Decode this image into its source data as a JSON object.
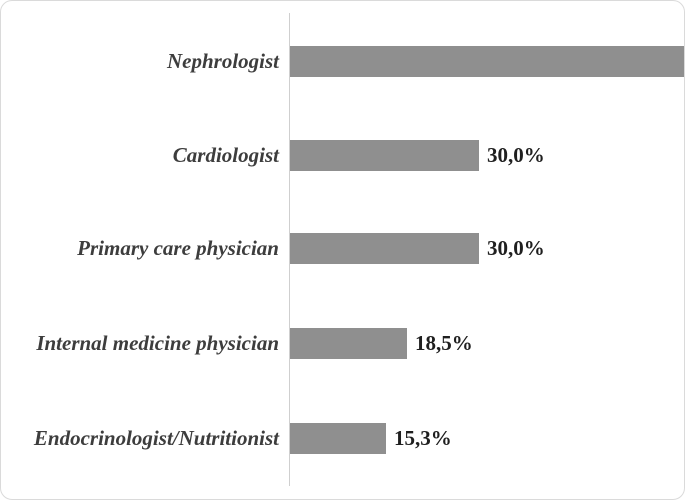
{
  "chart_data": {
    "type": "bar",
    "orientation": "horizontal",
    "title": "",
    "xlabel": "",
    "ylabel": "",
    "categories": [
      "Nephrologist",
      "Cardiologist",
      "Primary care physician",
      "Internal medicine physician",
      "Endocrinologist/Nutritionist"
    ],
    "values": [
      null,
      30.0,
      30.0,
      18.5,
      15.3
    ],
    "value_labels": [
      "",
      "30,0%",
      "30,0%",
      "18,5%",
      "15,3%"
    ],
    "first_bar_cut_off_at_right_edge": true,
    "decimal_separator": ",",
    "grid": false,
    "legend": "none",
    "bar_color": "#8f8f8f",
    "axis_line_color": "#cfcfcf",
    "category_label_color": "#3d3d3d",
    "value_label_color": "#1f1f1f",
    "background_color": "#ffffff"
  }
}
